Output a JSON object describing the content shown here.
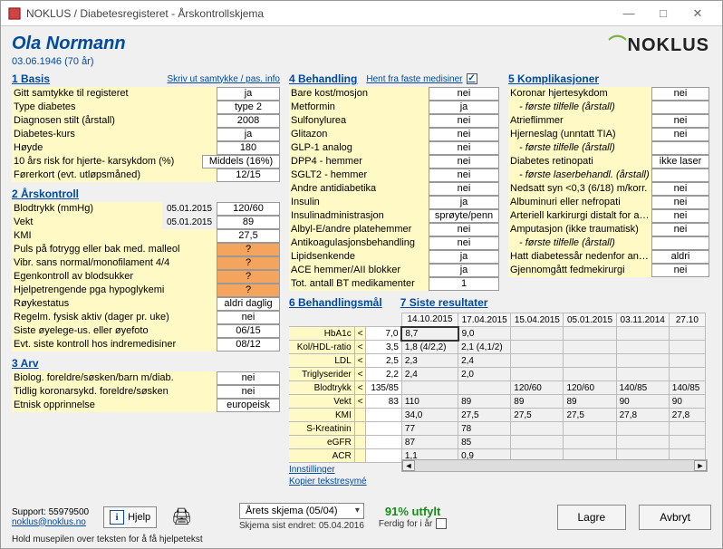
{
  "window": {
    "title": "NOKLUS / Diabetesregisteret - Årskontrollskjema"
  },
  "patient": {
    "name": "Ola Normann",
    "dob": "03.06.1946  (70 år)"
  },
  "logo": "NOKLUS",
  "s1": {
    "title": "1  Basis",
    "link": "Skriv ut samtykke / pas. info",
    "rows": [
      {
        "lbl": "Gitt samtykke til registeret",
        "val": "ja"
      },
      {
        "lbl": "Type diabetes",
        "val": "type 2"
      },
      {
        "lbl": "Diagnosen stilt (årstall)",
        "val": "2008"
      },
      {
        "lbl": "Diabetes-kurs",
        "val": "ja"
      },
      {
        "lbl": "Høyde",
        "val": "180"
      },
      {
        "lbl": "10 års risk for hjerte- karsykdom (%)",
        "val": "Middels (16%)",
        "wide": true
      },
      {
        "lbl": "Førerkort (evt. utløpsmåned)",
        "val": "12/15"
      }
    ]
  },
  "s2": {
    "title": "2  Årskontroll",
    "rows": [
      {
        "lbl": "Blodtrykk (mmHg)",
        "date": "05.01.2015",
        "val": "120/60"
      },
      {
        "lbl": "Vekt",
        "date": "05.01.2015",
        "val": "89"
      },
      {
        "lbl": "KMI",
        "val": "27,5"
      },
      {
        "lbl": "Puls på fotrygg eller bak med. malleol",
        "val": "?",
        "orange": true
      },
      {
        "lbl": "Vibr. sans normal/monofilament 4/4",
        "val": "?",
        "orange": true
      },
      {
        "lbl": "Egenkontroll av blodsukker",
        "val": "?",
        "orange": true
      },
      {
        "lbl": "Hjelpetrengende pga hypoglykemi",
        "val": "?",
        "orange": true
      },
      {
        "lbl": "Røykestatus",
        "val": "aldri daglig"
      },
      {
        "lbl": "Regelm. fysisk aktiv (dager pr. uke)",
        "val": "nei"
      },
      {
        "lbl": "Siste øyelege-us. eller øyefoto",
        "val": "06/15"
      },
      {
        "lbl": "Evt. siste kontroll hos indremedisiner",
        "val": "08/12"
      }
    ]
  },
  "s3": {
    "title": "3  Arv",
    "rows": [
      {
        "lbl": "Biolog. foreldre/søsken/barn m/diab.",
        "val": "nei"
      },
      {
        "lbl": "Tidlig koronarsykd. foreldre/søsken",
        "val": "nei"
      },
      {
        "lbl": "Etnisk opprinnelse",
        "val": "europeisk"
      }
    ]
  },
  "s4": {
    "title": "4  Behandling",
    "hent": "Hent fra faste medisiner",
    "rows": [
      {
        "lbl": "Bare kost/mosjon",
        "val": "nei"
      },
      {
        "lbl": "Metformin",
        "val": "ja"
      },
      {
        "lbl": "Sulfonylurea",
        "val": "nei"
      },
      {
        "lbl": "Glitazon",
        "val": "nei"
      },
      {
        "lbl": "GLP-1 analog",
        "val": "nei"
      },
      {
        "lbl": "DPP4 - hemmer",
        "val": "nei"
      },
      {
        "lbl": "SGLT2 - hemmer",
        "val": "nei"
      },
      {
        "lbl": "Andre antidiabetika",
        "val": "nei"
      },
      {
        "lbl": "Insulin",
        "val": "ja"
      },
      {
        "lbl": "Insulinadministrasjon",
        "val": "sprøyte/penn"
      },
      {
        "lbl": "Albyl-E/andre platehemmer",
        "val": "nei"
      },
      {
        "lbl": "Antikoagulasjonsbehandling",
        "val": "nei"
      },
      {
        "lbl": "Lipidsenkende",
        "val": "ja"
      },
      {
        "lbl": "ACE hemmer/AII blokker",
        "val": "ja"
      },
      {
        "lbl": "Tot. antall BT medikamenter",
        "val": "1"
      }
    ]
  },
  "s5": {
    "title": "5  Komplikasjoner",
    "rows": [
      {
        "lbl": "Koronar hjertesykdom",
        "val": "nei"
      },
      {
        "lbl": "- første tilfelle (årstall)",
        "val": "",
        "indent": true
      },
      {
        "lbl": "Atrieflimmer",
        "val": "nei"
      },
      {
        "lbl": "Hjerneslag (unntatt TIA)",
        "val": "nei"
      },
      {
        "lbl": "- første tilfelle (årstall)",
        "val": "",
        "indent": true
      },
      {
        "lbl": "Diabetes retinopati",
        "val": "ikke laser"
      },
      {
        "lbl": "- første laserbehandl. (årstall)",
        "val": "",
        "indent": true
      },
      {
        "lbl": "Nedsatt syn <0,3 (6/18) m/korr.",
        "val": "nei"
      },
      {
        "lbl": "Albuminuri eller nefropati",
        "val": "nei"
      },
      {
        "lbl": "Arteriell karkirurgi distalt for aorta",
        "val": "nei"
      },
      {
        "lbl": "Amputasjon (ikke traumatisk)",
        "val": "nei"
      },
      {
        "lbl": "- første tilfelle (årstall)",
        "val": "",
        "indent": true
      },
      {
        "lbl": "Hatt diabetessår nedenfor ankel",
        "val": "aldri"
      },
      {
        "lbl": "Gjennomgått fedmekirurgi",
        "val": "nei"
      }
    ]
  },
  "s6": {
    "title": "6  Behandlingsmål"
  },
  "s7": {
    "title": "7  Siste resultater"
  },
  "results": {
    "dates": [
      "14.10.2015",
      "17.04.2015",
      "15.04.2015",
      "05.01.2015",
      "03.11.2014",
      "27.10"
    ],
    "rows": [
      {
        "m": "HbA1c",
        "t": "7,0",
        "v": [
          "8,7",
          "9,0",
          "",
          "",
          "",
          ""
        ],
        "box": 0
      },
      {
        "m": "Kol/HDL-ratio",
        "t": "3,5",
        "v": [
          "1,8 (4/2,2)",
          "2,1 (4,1/2)",
          "",
          "",
          "",
          ""
        ]
      },
      {
        "m": "LDL",
        "t": "2,5",
        "v": [
          "2,3",
          "2,4",
          "",
          "",
          "",
          ""
        ]
      },
      {
        "m": "Triglyserider",
        "t": "2,2",
        "v": [
          "2,4",
          "2,0",
          "",
          "",
          "",
          ""
        ]
      },
      {
        "m": "Blodtrykk",
        "t": "135/85",
        "v": [
          "",
          "",
          "120/60",
          "120/60",
          "140/85",
          "140/85"
        ]
      },
      {
        "m": "Vekt",
        "t": "83",
        "v": [
          "110",
          "89",
          "89",
          "89",
          "90",
          "90"
        ]
      },
      {
        "m": "KMI",
        "t": "",
        "v": [
          "34,0",
          "27,5",
          "27,5",
          "27,5",
          "27,8",
          "27,8"
        ]
      },
      {
        "m": "S-Kreatinin",
        "t": "",
        "v": [
          "77",
          "78",
          "",
          "",
          "",
          ""
        ]
      },
      {
        "m": "eGFR",
        "t": "",
        "v": [
          "87",
          "85",
          "",
          "",
          "",
          ""
        ]
      },
      {
        "m": "ACR",
        "t": "",
        "v": [
          "1,1",
          "0,9",
          "",
          "",
          "",
          ""
        ]
      }
    ],
    "sublinks": {
      "a": "Innstillinger",
      "b": "Kopier tekstresymé"
    }
  },
  "footer": {
    "support_label": "Support: 55979500",
    "support_mail": "noklus@noklus.no",
    "help": "Hjelp",
    "dd": "Årets skjema (05/04)",
    "pct": "91% utfylt",
    "ferdig": "Ferdig for i år",
    "lagre": "Lagre",
    "avbryt": "Avbryt",
    "endret": "Skjema sist endret: 05.04.2016",
    "hint": "Hold musepilen over teksten for å få hjelpetekst"
  }
}
